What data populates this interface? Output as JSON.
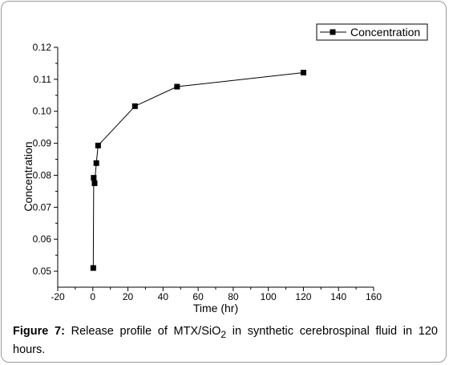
{
  "chart_data": {
    "type": "line",
    "xlabel": "Time (hr)",
    "ylabel": "Concentration",
    "xlim": [
      -20,
      160
    ],
    "ylim": [
      0.045,
      0.12
    ],
    "xticks": [
      "-20",
      "0",
      "20",
      "40",
      "60",
      "80",
      "100",
      "120",
      "140",
      "160"
    ],
    "yticks": [
      "0.05",
      "0.06",
      "0.07",
      "0.08",
      "0.09",
      "0.10",
      "0.11",
      "0.12"
    ],
    "grid": false,
    "legend": "top-right",
    "series": [
      {
        "name": "Concentration",
        "marker": "square",
        "color": "#000000",
        "x": [
          0.25,
          0.5,
          1,
          2,
          3,
          24,
          48,
          120
        ],
        "y": [
          0.051,
          0.0792,
          0.0775,
          0.0838,
          0.0893,
          0.1016,
          0.1077,
          0.1121
        ]
      }
    ]
  },
  "caption": {
    "label": "Figure 7:",
    "text_before": " Release profile of MTX/SiO",
    "subscript": "2",
    "text_after": " in synthetic cerebrospinal fluid in 120 hours."
  }
}
